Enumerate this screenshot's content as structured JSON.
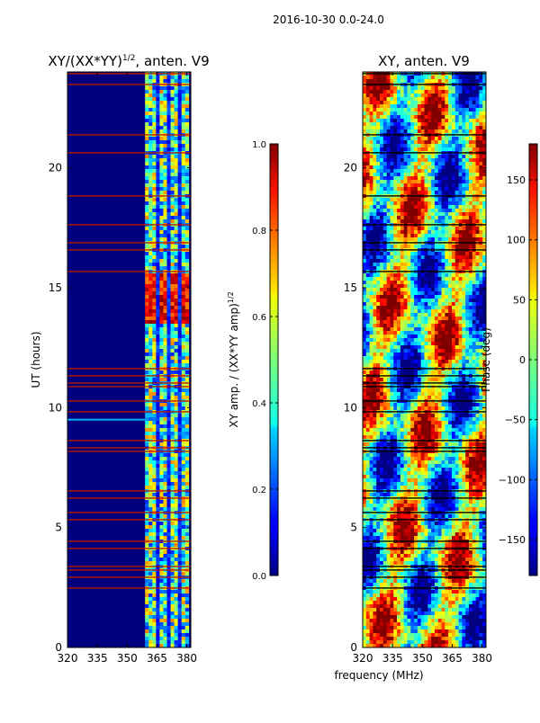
{
  "suptitle": "2016-10-30 0.0-24.0",
  "colors": {
    "background": "#00007f",
    "flag": "#b71c00",
    "frame": "#000000"
  },
  "chart_data": [
    {
      "type": "heatmap",
      "title_main": "XY/(XX*YY)",
      "title_exp": "1/2",
      "title_tail": ", anten. V9",
      "ylabel": "UT (hours)",
      "xlim": [
        320,
        382
      ],
      "ylim": [
        0,
        24
      ],
      "xticks": [
        320,
        335,
        350,
        365,
        380
      ],
      "yticks": [
        0,
        5,
        10,
        15,
        20
      ],
      "colorbar": {
        "label_main": "XY amp. / (XX*YY amp)",
        "label_exp": "1/2",
        "range": [
          0.0,
          1.0
        ],
        "ticks": [
          "0.0",
          "0.2",
          "0.4",
          "0.6",
          "0.8",
          "1.0"
        ]
      }
    },
    {
      "type": "heatmap",
      "title": "XY, anten. V9",
      "xlabel": "frequency (MHz)",
      "xlim": [
        320,
        382
      ],
      "ylim": [
        0,
        24
      ],
      "xticks": [
        320,
        335,
        350,
        365,
        380
      ],
      "yticks": [
        0,
        5,
        10,
        15,
        20
      ],
      "colorbar": {
        "label": "Phase (deg)",
        "range": [
          -180,
          180
        ],
        "ticks": [
          "-150",
          "-100",
          "-50",
          "0",
          "50",
          "100",
          "150"
        ]
      }
    }
  ]
}
